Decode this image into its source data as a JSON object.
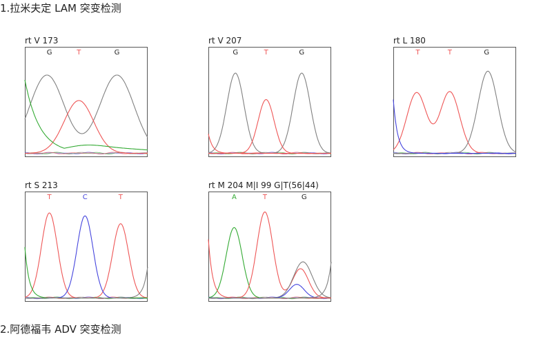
{
  "sections": [
    {
      "title": "1.拉米夫定 LAM 突变检测"
    },
    {
      "title": "2.阿德福韦 ADV 突变检测"
    }
  ],
  "colors": {
    "G": "#808080",
    "T": "#ee5555",
    "C": "#4444dd",
    "A": "#33aa33",
    "frame": "#555555"
  },
  "chart_data": [
    {
      "type": "line",
      "title": "rt V 173",
      "bases": [
        "G",
        "T",
        "G"
      ],
      "peak_positions": [
        0.2,
        0.44,
        0.75
      ],
      "series": [
        {
          "name": "G",
          "points": [
            [
              0.18,
              0.8
            ],
            [
              0.75,
              0.8
            ]
          ],
          "width": 0.14
        },
        {
          "name": "T",
          "points": [
            [
              0.44,
              0.54
            ]
          ],
          "width": 0.12
        },
        {
          "name": "A",
          "baseline": true,
          "start": 0.75,
          "decay": 0.12,
          "tail": [
            [
              0.5,
              0.08
            ],
            [
              0.8,
              0.05
            ],
            [
              1.0,
              0.04
            ]
          ]
        }
      ]
    },
    {
      "type": "line",
      "title": "rt V 207",
      "bases": [
        "G",
        "T",
        "G"
      ],
      "peak_positions": [
        0.22,
        0.47,
        0.76
      ],
      "series": [
        {
          "name": "G",
          "points": [
            [
              0.22,
              0.82
            ],
            [
              0.76,
              0.82
            ]
          ],
          "width": 0.07
        },
        {
          "name": "T",
          "points": [
            [
              0.47,
              0.55
            ]
          ],
          "width": 0.065
        },
        {
          "name": "T",
          "edge": [
            [
              0.0,
              0.2
            ]
          ]
        }
      ]
    },
    {
      "type": "line",
      "title": "rt L 180",
      "bases": [
        "T",
        "T",
        "G"
      ],
      "peak_positions": [
        0.2,
        0.46,
        0.76
      ],
      "series": [
        {
          "name": "T",
          "points": [
            [
              0.19,
              0.62
            ],
            [
              0.46,
              0.63
            ]
          ],
          "width": 0.08
        },
        {
          "name": "G",
          "points": [
            [
              0.77,
              0.84
            ]
          ],
          "width": 0.08
        },
        {
          "name": "C",
          "edge": [
            [
              0.0,
              0.55
            ]
          ]
        }
      ]
    },
    {
      "type": "line",
      "title": "rt S 213",
      "bases": [
        "T",
        "C",
        "T"
      ],
      "peak_positions": [
        0.2,
        0.49,
        0.78
      ],
      "series": [
        {
          "name": "T",
          "points": [
            [
              0.2,
              0.87
            ],
            [
              0.78,
              0.76
            ]
          ],
          "width": 0.065
        },
        {
          "name": "C",
          "points": [
            [
              0.49,
              0.84
            ]
          ],
          "width": 0.065
        },
        {
          "name": "A",
          "edge": [
            [
              0.0,
              0.52
            ]
          ]
        },
        {
          "name": "G",
          "edge_right": [
            [
              1.0,
              0.32
            ]
          ]
        }
      ]
    },
    {
      "type": "line",
      "title": "rt M 204 M|I 99 G|T(56|44)",
      "bases": [
        "A",
        "T",
        "G"
      ],
      "peak_positions": [
        0.21,
        0.46,
        0.78
      ],
      "series": [
        {
          "name": "A",
          "points": [
            [
              0.21,
              0.72
            ]
          ],
          "width": 0.065
        },
        {
          "name": "T",
          "points": [
            [
              0.46,
              0.88
            ],
            [
              0.75,
              0.3
            ]
          ],
          "width": 0.065
        },
        {
          "name": "G",
          "points": [
            [
              0.77,
              0.37
            ]
          ],
          "width": 0.075
        },
        {
          "name": "C",
          "points": [
            [
              0.72,
              0.14
            ]
          ],
          "width": 0.06
        },
        {
          "name": "T",
          "edge": [
            [
              0.0,
              0.6
            ]
          ]
        },
        {
          "name": "G",
          "edge_right": [
            [
              1.0,
              0.37
            ]
          ]
        }
      ]
    }
  ]
}
